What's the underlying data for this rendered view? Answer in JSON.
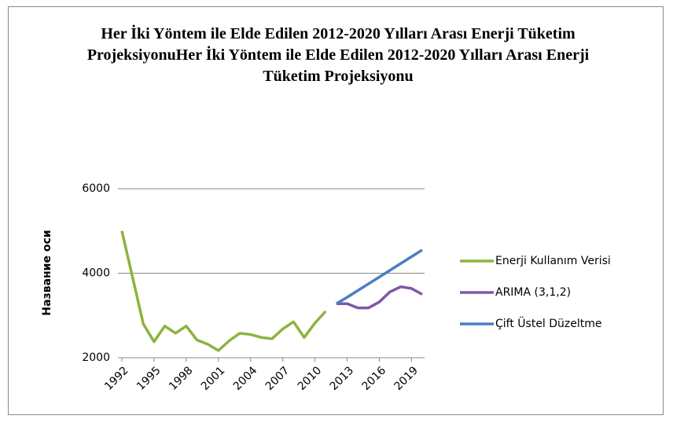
{
  "chart_data": {
    "type": "line",
    "title": "Her İki Yöntem  ile Elde Edilen 2012-2020 Yılları  Arası Enerji  Tüketim  ProjeksiyonuHer  İki Yöntem  ile Elde Edilen  2012-2020 Yılları  Arası Enerji  Tüketim Projeksiyonu",
    "y_label": "Название оси",
    "x": [
      1992,
      1993,
      1994,
      1995,
      1996,
      1997,
      1998,
      1999,
      2000,
      2001,
      2002,
      2003,
      2004,
      2005,
      2006,
      2007,
      2008,
      2009,
      2010,
      2011,
      2012,
      2013,
      2014,
      2015,
      2016,
      2017,
      2018,
      2019,
      2020
    ],
    "xlim": [
      1992,
      2020
    ],
    "xticks": [
      1992,
      1995,
      1998,
      2001,
      2004,
      2007,
      2010,
      2013,
      2016,
      2019
    ],
    "ylim": [
      2000,
      6000
    ],
    "yticks": [
      2000,
      4000,
      6000
    ],
    "grid": true,
    "legend": "right",
    "series": [
      {
        "name": "Enerji Kullanım Verisi",
        "color": "#8db33f",
        "values": [
          5000,
          3900,
          2800,
          2380,
          2750,
          2580,
          2750,
          2420,
          2320,
          2170,
          2400,
          2580,
          2550,
          2480,
          2450,
          2680,
          2850,
          2480,
          2820,
          3100,
          null,
          null,
          null,
          null,
          null,
          null,
          null,
          null,
          null
        ]
      },
      {
        "name": "ARIMA (3,1,2)",
        "color": "#7f57a8",
        "values": [
          null,
          null,
          null,
          null,
          null,
          null,
          null,
          null,
          null,
          null,
          null,
          null,
          null,
          null,
          null,
          null,
          null,
          null,
          null,
          null,
          3280,
          3280,
          3180,
          3180,
          3320,
          3560,
          3680,
          3640,
          3500
        ]
      },
      {
        "name": "Çift Üstel Düzeltme",
        "color": "#4a7fc1",
        "values": [
          null,
          null,
          null,
          null,
          null,
          null,
          null,
          null,
          null,
          null,
          null,
          null,
          null,
          null,
          null,
          null,
          null,
          null,
          null,
          null,
          3280,
          3430,
          3590,
          3750,
          3910,
          4070,
          4230,
          4390,
          4550
        ]
      }
    ]
  }
}
